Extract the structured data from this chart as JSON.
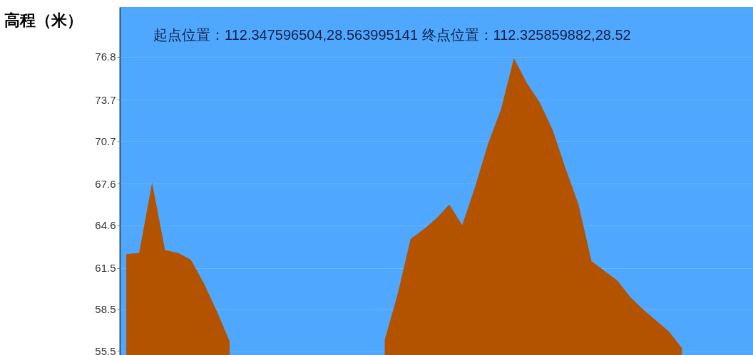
{
  "chart_data": {
    "type": "area",
    "title": "起点位置：112.347596504,28.563995141 终点位置：112.325859882,28.52",
    "ylabel": "高程（米）",
    "categories": [
      null,
      null,
      null,
      null,
      null,
      null,
      null,
      null,
      null,
      null,
      null,
      null,
      null,
      null,
      null,
      null,
      null,
      null,
      null,
      null,
      null,
      null,
      null,
      null,
      null,
      null,
      null,
      null,
      null,
      null,
      null,
      null,
      null,
      null,
      null,
      null,
      null,
      null,
      null,
      null,
      null,
      null,
      null,
      null,
      null,
      null,
      null,
      null,
      null
    ],
    "series": [
      {
        "color": "#b35300",
        "values": [
          62.5,
          62.6,
          67.7,
          62.8,
          62.6,
          62.1,
          60.4,
          58.4,
          56.2,
          null,
          null,
          null,
          null,
          null,
          null,
          null,
          null,
          null,
          null,
          null,
          56.3,
          59.6,
          63.6,
          64.3,
          65.1,
          66.1,
          64.6,
          67.4,
          70.5,
          73.0,
          76.7,
          74.9,
          73.5,
          71.5,
          68.7,
          66.1,
          62.0,
          61.3,
          60.6,
          59.4,
          58.5,
          57.7,
          56.9,
          55.7,
          null,
          null,
          null,
          null,
          null
        ]
      }
    ],
    "ylim": [
      55.2,
      80.4
    ],
    "yticks": [
      55.5,
      58.5,
      61.5,
      64.6,
      67.6,
      70.7,
      73.7,
      76.8
    ],
    "grid": "y",
    "tick_labels": "y"
  }
}
